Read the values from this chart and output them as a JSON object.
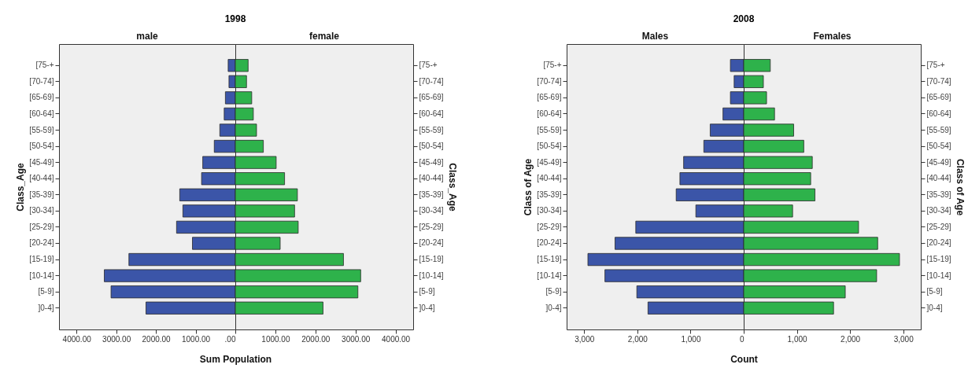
{
  "chart_data": [
    {
      "type": "bar",
      "orientation": "horizontal",
      "title": "1998",
      "subtitle": "male",
      "xlabel": "Sum Population",
      "ylabel": "Class_Age",
      "categories": [
        "[75-+",
        "[70-74]",
        "[65-69]",
        "[60-64]",
        "[55-59]",
        "[50-54]",
        "[45-49]",
        "[40-44]",
        "[35-39]",
        "[30-34]",
        "[25-29]",
        "[20-24]",
        "[15-19]",
        "[10-14]",
        "[5-9]",
        "]0-4]"
      ],
      "values": [
        180,
        160,
        250,
        280,
        390,
        530,
        820,
        850,
        1400,
        1320,
        1480,
        1080,
        2680,
        3300,
        3130,
        2250
      ],
      "color": "#3b55a8",
      "xlim": [
        4440,
        0
      ],
      "xticks": [
        {
          "value": 4000,
          "label": "4000.00"
        },
        {
          "value": 3000,
          "label": "3000.00"
        },
        {
          "value": 2000,
          "label": "2000.00"
        },
        {
          "value": 1000,
          "label": "1000.00"
        },
        {
          "value": 0,
          "label": ".00"
        }
      ]
    },
    {
      "type": "bar",
      "orientation": "horizontal",
      "subtitle": "female",
      "ylabel": "Class_Age",
      "categories": [
        "[75-+",
        "[70-74]",
        "[65-69]",
        "[60-64]",
        "[55-59]",
        "[50-54]",
        "[45-49]",
        "[40-44]",
        "[35-39]",
        "[30-34]",
        "[25-29]",
        "[20-24]",
        "[15-19]",
        "[10-14]",
        "[5-9]",
        "]0-4]"
      ],
      "values": [
        320,
        280,
        410,
        450,
        530,
        700,
        1020,
        1230,
        1550,
        1480,
        1570,
        1120,
        2700,
        3130,
        3060,
        2190
      ],
      "color": "#2eb24b",
      "xlim": [
        0,
        4440
      ],
      "xticks": [
        {
          "value": 1000,
          "label": "1000.00"
        },
        {
          "value": 2000,
          "label": "2000.00"
        },
        {
          "value": 3000,
          "label": "3000.00"
        },
        {
          "value": 4000,
          "label": "4000.00"
        }
      ]
    },
    {
      "type": "bar",
      "orientation": "horizontal",
      "title": "2008",
      "subtitle": "Males",
      "xlabel": "Count",
      "ylabel": "Class of Age",
      "categories": [
        "[75-+",
        "[70-74]",
        "[65-69]",
        "[60-64]",
        "[55-59]",
        "[50-54]",
        "[45-49]",
        "[40-44]",
        "[35-39]",
        "[30-34]",
        "[25-29]",
        "[20-24]",
        "[15-19]",
        "[10-14]",
        "[5-9]",
        "]0-4]"
      ],
      "values": [
        250,
        180,
        250,
        390,
        630,
        750,
        1130,
        1200,
        1270,
        900,
        2030,
        2420,
        2930,
        2610,
        2010,
        1800
      ],
      "color": "#3b55a8",
      "xlim": [
        3330,
        0
      ],
      "xticks": [
        {
          "value": 3000,
          "label": "3,000"
        },
        {
          "value": 2000,
          "label": "2,000"
        },
        {
          "value": 1000,
          "label": "1,000"
        },
        0
      ]
    },
    {
      "type": "bar",
      "orientation": "horizontal",
      "subtitle": "Females",
      "ylabel": "Class of Age",
      "categories": [
        "[75-+",
        "[70-74]",
        "[65-69]",
        "[60-64]",
        "[55-59]",
        "[50-54]",
        "[45-49]",
        "[40-44]",
        "[35-39]",
        "[30-34]",
        "[25-29]",
        "[20-24]",
        "[15-19]",
        "[10-14]",
        "[5-9]",
        "]0-4]"
      ],
      "values": [
        500,
        370,
        430,
        580,
        940,
        1130,
        1290,
        1260,
        1340,
        920,
        2160,
        2520,
        2930,
        2500,
        1910,
        1690
      ],
      "color": "#2eb24b",
      "xlim": [
        0,
        3330
      ],
      "xticks": [
        {
          "value": 1000,
          "label": "1,000"
        },
        {
          "value": 2000,
          "label": "2,000"
        },
        {
          "value": 3000,
          "label": "3,000"
        }
      ]
    }
  ]
}
